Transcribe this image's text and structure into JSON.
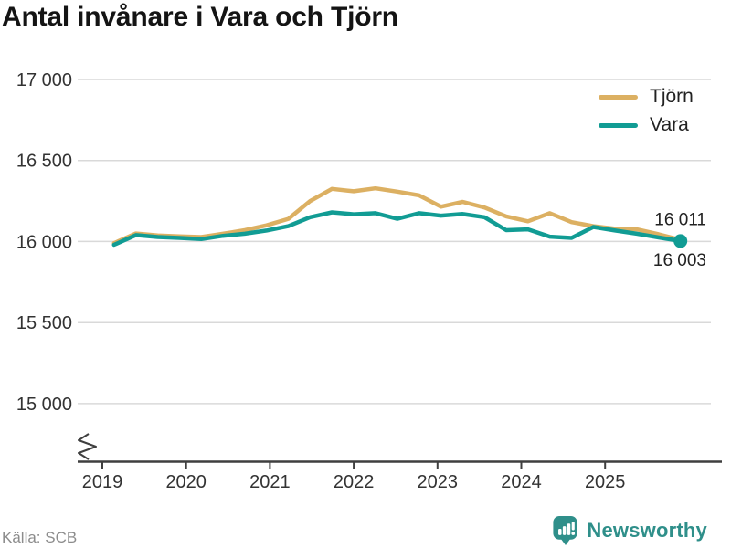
{
  "title": "Antal invånare i Vara och Tjörn",
  "source": "Källa: SCB",
  "branding": {
    "name": "Newsworthy",
    "color": "#2f8f8a"
  },
  "colors": {
    "gridline": "#d9d9d9",
    "axis": "#3f3f3f",
    "tick_label": "#333333",
    "end_label": "#222222",
    "title": "#141414",
    "source_text": "#8c8c8c"
  },
  "chart_data": {
    "type": "line",
    "title": "Antal invånare i Vara och Tjörn",
    "xlabel": "",
    "ylabel": "",
    "ylim": [
      15000,
      17000
    ],
    "y_axis_break": true,
    "grid": "horizontal",
    "legend_position": "top-right",
    "x_ticks": [
      2019,
      2020,
      2021,
      2022,
      2023,
      2024,
      2025
    ],
    "y_ticks": [
      {
        "value": 17000,
        "label": "17 000"
      },
      {
        "value": 16500,
        "label": "16 500"
      },
      {
        "value": 16000,
        "label": "16 000"
      },
      {
        "value": 15500,
        "label": "15 500"
      },
      {
        "value": 15000,
        "label": "15 000"
      }
    ],
    "x": [
      2019.14,
      2019.4,
      2019.66,
      2019.92,
      2020.18,
      2020.44,
      2020.7,
      2020.96,
      2021.22,
      2021.48,
      2021.74,
      2022.0,
      2022.26,
      2022.52,
      2022.78,
      2023.04,
      2023.3,
      2023.56,
      2023.82,
      2024.08,
      2024.34,
      2024.6,
      2024.86,
      2025.12,
      2025.38,
      2025.64,
      2025.9
    ],
    "series": [
      {
        "name": "Tjörn",
        "color": "#dcb062",
        "end_label": "16 011",
        "end_value": 16011,
        "end_dot": false,
        "values": [
          15990,
          16050,
          16038,
          16032,
          16028,
          16048,
          16070,
          16100,
          16140,
          16250,
          16325,
          16310,
          16328,
          16308,
          16285,
          16215,
          16245,
          16210,
          16155,
          16125,
          16175,
          16120,
          16095,
          16080,
          16075,
          16045,
          16011
        ]
      },
      {
        "name": "Vara",
        "color": "#119c94",
        "end_label": "16 003",
        "end_value": 16003,
        "end_dot": true,
        "values": [
          15980,
          16040,
          16028,
          16022,
          16015,
          16035,
          16048,
          16068,
          16095,
          16150,
          16180,
          16168,
          16175,
          16140,
          16175,
          16160,
          16170,
          16150,
          16070,
          16075,
          16030,
          16022,
          16090,
          16068,
          16048,
          16025,
          16003
        ]
      }
    ]
  }
}
